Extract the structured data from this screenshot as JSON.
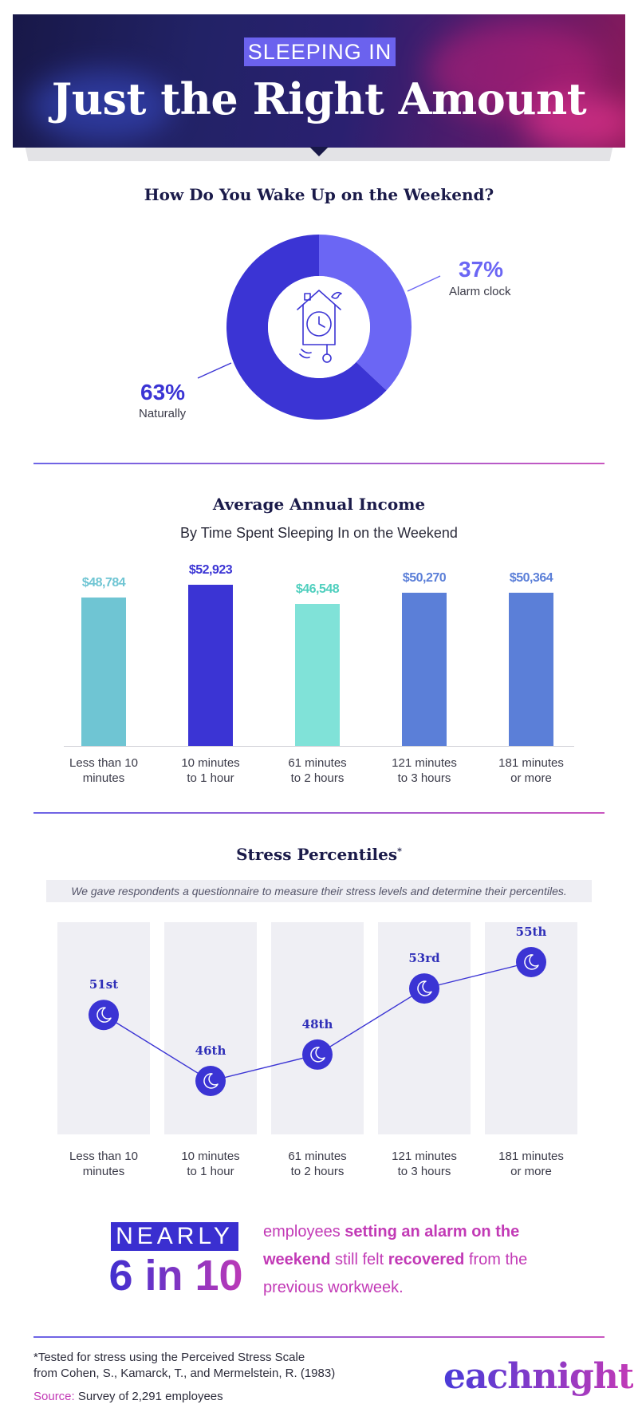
{
  "header": {
    "tag": "SLEEPING IN",
    "title": "Just the Right Amount"
  },
  "colors": {
    "indigo": "#3b34d4",
    "periwinkle": "#6b66f4",
    "teal": "#6fc5d3",
    "mint": "#80e2d8",
    "blue": "#5b7fd8",
    "magenta": "#c23ab6"
  },
  "chart_data": [
    {
      "type": "pie",
      "title": "How Do You Wake Up on the Weekend?",
      "slices": [
        {
          "label": "Alarm clock",
          "value": 37,
          "display": "37%",
          "color": "#6b66f4"
        },
        {
          "label": "Naturally",
          "value": 63,
          "display": "63%",
          "color": "#3b34d4"
        }
      ],
      "center_icon": "cuckoo-clock-icon"
    },
    {
      "type": "bar",
      "title": "Average Annual Income",
      "subtitle": "By Time Spent Sleeping In on the Weekend",
      "categories": [
        "Less than 10 minutes",
        "10 minutes to 1 hour",
        "61 minutes to 2 hours",
        "121 minutes to 3 hours",
        "181 minutes or more"
      ],
      "category_lines": [
        [
          "Less than 10",
          "minutes"
        ],
        [
          "10 minutes",
          "to 1 hour"
        ],
        [
          "61 minutes",
          "to 2 hours"
        ],
        [
          "121 minutes",
          "to 3 hours"
        ],
        [
          "181 minutes",
          "or more"
        ]
      ],
      "values": [
        48784,
        52923,
        46548,
        50270,
        50364
      ],
      "labels": [
        "$48,784",
        "$52,923",
        "$46,548",
        "$50,270",
        "$50,364"
      ],
      "colors": [
        "#6fc5d3",
        "#3b34d4",
        "#80e2d8",
        "#5b7fd8",
        "#5b7fd8"
      ],
      "ylim": [
        0,
        55000
      ]
    },
    {
      "type": "line",
      "title": "Stress Percentiles",
      "title_mark": "*",
      "note": "We gave respondents a questionnaire to measure their stress levels and determine their percentiles.",
      "categories": [
        "Less than 10 minutes",
        "10 minutes to 1 hour",
        "61 minutes to 2 hours",
        "121 minutes to 3 hours",
        "181 minutes or more"
      ],
      "category_lines": [
        [
          "Less than 10",
          "minutes"
        ],
        [
          "10 minutes",
          "to 1 hour"
        ],
        [
          "61 minutes",
          "to 2 hours"
        ],
        [
          "121 minutes",
          "to 3 hours"
        ],
        [
          "181 minutes",
          "or more"
        ]
      ],
      "values": [
        51,
        46,
        48,
        53,
        55
      ],
      "labels": [
        "51st",
        "46th",
        "48th",
        "53rd",
        "55th"
      ],
      "marker_icon": "moon-icon"
    }
  ],
  "callout": {
    "nearly": "NEARLY",
    "stat": "6 in 10",
    "text_parts": [
      {
        "text": "employees ",
        "bold": false
      },
      {
        "text": "setting an alarm on the weekend",
        "bold": true
      },
      {
        "text": " still felt ",
        "bold": false
      },
      {
        "text": "recovered",
        "bold": true
      },
      {
        "text": " from the previous workweek.",
        "bold": false
      }
    ]
  },
  "footer": {
    "footnote_line1": "*Tested for stress using the Perceived Stress Scale",
    "footnote_line2": "from Cohen, S., Kamarck, T., and Mermelstein, R. (1983)",
    "source_label": "Source:",
    "source_text": " Survey of 2,291 employees",
    "logo": "eachnight"
  }
}
